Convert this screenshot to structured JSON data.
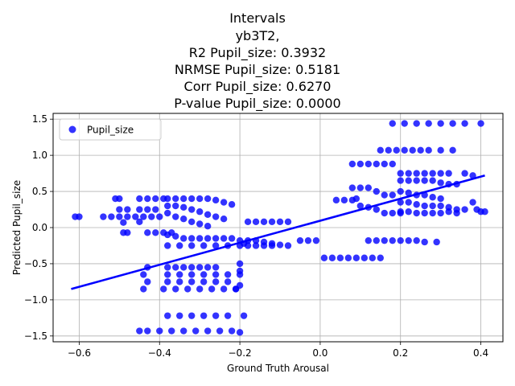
{
  "chart_data": {
    "type": "scatter",
    "title_lines": [
      "Intervals",
      "yb3T2,",
      "R2 Pupil_size: 0.3932",
      "NRMSE Pupil_size: 0.5181",
      "Corr Pupil_size: 0.6270",
      "P-value Pupil_size: 0.0000"
    ],
    "xlabel": "Ground Truth Arousal",
    "ylabel": "Predicted Pupil_size",
    "xlim": [
      -0.665,
      0.455
    ],
    "ylim": [
      -1.58,
      1.58
    ],
    "xticks": [
      -0.6,
      -0.4,
      -0.2,
      0.0,
      0.2,
      0.4
    ],
    "xtick_labels": [
      "−0.6",
      "−0.4",
      "−0.2",
      "0.0",
      "0.2",
      "0.4"
    ],
    "yticks": [
      -1.5,
      -1.0,
      -0.5,
      0.0,
      0.5,
      1.0,
      1.5
    ],
    "ytick_labels": [
      "−1.5",
      "−1.0",
      "−0.5",
      "0.0",
      "0.5",
      "1.0",
      "1.5"
    ],
    "grid": true,
    "legend": {
      "position": "upper-left",
      "entries": [
        "Pupil_size"
      ]
    },
    "series": [
      {
        "name": "Pupil_size",
        "type": "scatter",
        "color": "#0000ff",
        "points": [
          [
            -0.61,
            0.15
          ],
          [
            -0.6,
            0.15
          ],
          [
            -0.54,
            0.15
          ],
          [
            -0.52,
            0.15
          ],
          [
            -0.5,
            0.15
          ],
          [
            -0.48,
            0.15
          ],
          [
            -0.46,
            0.15
          ],
          [
            -0.5,
            0.25
          ],
          [
            -0.48,
            0.25
          ],
          [
            -0.51,
            0.4
          ],
          [
            -0.5,
            0.4
          ],
          [
            -0.49,
            0.07
          ],
          [
            -0.48,
            -0.07
          ],
          [
            -0.49,
            -0.07
          ],
          [
            -0.45,
            0.4
          ],
          [
            -0.43,
            0.4
          ],
          [
            -0.41,
            0.4
          ],
          [
            -0.39,
            0.4
          ],
          [
            -0.45,
            0.25
          ],
          [
            -0.43,
            0.25
          ],
          [
            -0.41,
            0.25
          ],
          [
            -0.44,
            0.15
          ],
          [
            -0.42,
            0.15
          ],
          [
            -0.4,
            0.15
          ],
          [
            -0.45,
            0.08
          ],
          [
            -0.43,
            -0.07
          ],
          [
            -0.41,
            -0.07
          ],
          [
            -0.39,
            -0.07
          ],
          [
            -0.37,
            -0.07
          ],
          [
            -0.44,
            -0.65
          ],
          [
            -0.43,
            -0.75
          ],
          [
            -0.44,
            -0.85
          ],
          [
            -0.43,
            -0.55
          ],
          [
            -0.45,
            -1.43
          ],
          [
            -0.43,
            -1.43
          ],
          [
            -0.4,
            -1.43
          ],
          [
            -0.37,
            -1.43
          ],
          [
            -0.34,
            -1.43
          ],
          [
            -0.31,
            -1.43
          ],
          [
            -0.28,
            -1.43
          ],
          [
            -0.25,
            -1.43
          ],
          [
            -0.22,
            -1.43
          ],
          [
            -0.2,
            -1.45
          ],
          [
            -0.38,
            0.4
          ],
          [
            -0.36,
            0.4
          ],
          [
            -0.34,
            0.4
          ],
          [
            -0.32,
            0.4
          ],
          [
            -0.3,
            0.4
          ],
          [
            -0.28,
            0.4
          ],
          [
            -0.26,
            0.38
          ],
          [
            -0.24,
            0.35
          ],
          [
            -0.22,
            0.32
          ],
          [
            -0.38,
            0.3
          ],
          [
            -0.36,
            0.3
          ],
          [
            -0.34,
            0.28
          ],
          [
            -0.32,
            0.25
          ],
          [
            -0.3,
            0.22
          ],
          [
            -0.28,
            0.18
          ],
          [
            -0.26,
            0.15
          ],
          [
            -0.24,
            0.12
          ],
          [
            -0.38,
            0.2
          ],
          [
            -0.36,
            0.15
          ],
          [
            -0.34,
            0.12
          ],
          [
            -0.32,
            0.08
          ],
          [
            -0.3,
            0.05
          ],
          [
            -0.28,
            0.02
          ],
          [
            -0.38,
            -0.1
          ],
          [
            -0.36,
            -0.12
          ],
          [
            -0.34,
            -0.15
          ],
          [
            -0.32,
            -0.15
          ],
          [
            -0.3,
            -0.15
          ],
          [
            -0.28,
            -0.15
          ],
          [
            -0.26,
            -0.15
          ],
          [
            -0.24,
            -0.15
          ],
          [
            -0.22,
            -0.15
          ],
          [
            -0.38,
            -0.25
          ],
          [
            -0.35,
            -0.25
          ],
          [
            -0.32,
            -0.25
          ],
          [
            -0.29,
            -0.25
          ],
          [
            -0.26,
            -0.25
          ],
          [
            -0.23,
            -0.25
          ],
          [
            -0.2,
            -0.25
          ],
          [
            -0.38,
            -0.55
          ],
          [
            -0.36,
            -0.55
          ],
          [
            -0.34,
            -0.55
          ],
          [
            -0.32,
            -0.55
          ],
          [
            -0.3,
            -0.55
          ],
          [
            -0.28,
            -0.55
          ],
          [
            -0.26,
            -0.55
          ],
          [
            -0.38,
            -0.65
          ],
          [
            -0.35,
            -0.65
          ],
          [
            -0.32,
            -0.65
          ],
          [
            -0.29,
            -0.65
          ],
          [
            -0.26,
            -0.65
          ],
          [
            -0.23,
            -0.65
          ],
          [
            -0.2,
            -0.65
          ],
          [
            -0.38,
            -0.75
          ],
          [
            -0.35,
            -0.75
          ],
          [
            -0.32,
            -0.75
          ],
          [
            -0.29,
            -0.75
          ],
          [
            -0.26,
            -0.75
          ],
          [
            -0.23,
            -0.75
          ],
          [
            -0.39,
            -0.85
          ],
          [
            -0.36,
            -0.85
          ],
          [
            -0.33,
            -0.85
          ],
          [
            -0.3,
            -0.85
          ],
          [
            -0.27,
            -0.85
          ],
          [
            -0.24,
            -0.85
          ],
          [
            -0.21,
            -0.85
          ],
          [
            -0.38,
            -1.22
          ],
          [
            -0.35,
            -1.22
          ],
          [
            -0.32,
            -1.22
          ],
          [
            -0.29,
            -1.22
          ],
          [
            -0.26,
            -1.22
          ],
          [
            -0.23,
            -1.22
          ],
          [
            -0.19,
            -1.22
          ],
          [
            -0.2,
            -0.5
          ],
          [
            -0.2,
            -0.6
          ],
          [
            -0.2,
            -0.8
          ],
          [
            -0.21,
            -0.85
          ],
          [
            -0.2,
            -0.18
          ],
          [
            -0.19,
            -0.22
          ],
          [
            -0.18,
            0.08
          ],
          [
            -0.16,
            0.08
          ],
          [
            -0.14,
            0.08
          ],
          [
            -0.12,
            0.08
          ],
          [
            -0.1,
            0.08
          ],
          [
            -0.08,
            0.08
          ],
          [
            -0.18,
            -0.18
          ],
          [
            -0.16,
            -0.18
          ],
          [
            -0.14,
            -0.2
          ],
          [
            -0.12,
            -0.22
          ],
          [
            -0.1,
            -0.24
          ],
          [
            -0.08,
            -0.25
          ],
          [
            -0.18,
            -0.25
          ],
          [
            -0.16,
            -0.25
          ],
          [
            -0.14,
            -0.25
          ],
          [
            -0.12,
            -0.25
          ],
          [
            -0.05,
            -0.18
          ],
          [
            -0.03,
            -0.18
          ],
          [
            -0.01,
            -0.18
          ],
          [
            0.04,
            0.38
          ],
          [
            0.06,
            0.38
          ],
          [
            0.08,
            0.38
          ],
          [
            0.09,
            0.4
          ],
          [
            0.01,
            -0.42
          ],
          [
            0.03,
            -0.42
          ],
          [
            0.05,
            -0.42
          ],
          [
            0.07,
            -0.42
          ],
          [
            0.09,
            -0.42
          ],
          [
            0.11,
            -0.42
          ],
          [
            0.13,
            -0.42
          ],
          [
            0.15,
            -0.42
          ],
          [
            0.08,
            0.88
          ],
          [
            0.1,
            0.88
          ],
          [
            0.12,
            0.88
          ],
          [
            0.14,
            0.88
          ],
          [
            0.16,
            0.88
          ],
          [
            0.18,
            0.88
          ],
          [
            0.08,
            0.55
          ],
          [
            0.1,
            0.55
          ],
          [
            0.12,
            0.55
          ],
          [
            0.14,
            0.5
          ],
          [
            0.16,
            0.45
          ],
          [
            0.18,
            0.45
          ],
          [
            0.1,
            0.3
          ],
          [
            0.12,
            0.28
          ],
          [
            0.14,
            0.25
          ],
          [
            0.16,
            0.2
          ],
          [
            0.18,
            0.2
          ],
          [
            0.2,
            0.2
          ],
          [
            0.12,
            -0.18
          ],
          [
            0.14,
            -0.18
          ],
          [
            0.16,
            -0.18
          ],
          [
            0.18,
            -0.18
          ],
          [
            0.2,
            -0.18
          ],
          [
            0.22,
            -0.18
          ],
          [
            0.24,
            -0.18
          ],
          [
            0.26,
            -0.2
          ],
          [
            0.29,
            -0.2
          ],
          [
            0.15,
            1.07
          ],
          [
            0.17,
            1.07
          ],
          [
            0.19,
            1.07
          ],
          [
            0.21,
            1.07
          ],
          [
            0.23,
            1.07
          ],
          [
            0.25,
            1.07
          ],
          [
            0.27,
            1.07
          ],
          [
            0.3,
            1.07
          ],
          [
            0.33,
            1.07
          ],
          [
            0.18,
            1.44
          ],
          [
            0.21,
            1.44
          ],
          [
            0.24,
            1.44
          ],
          [
            0.27,
            1.44
          ],
          [
            0.3,
            1.44
          ],
          [
            0.33,
            1.44
          ],
          [
            0.36,
            1.44
          ],
          [
            0.4,
            1.44
          ],
          [
            0.2,
            0.75
          ],
          [
            0.22,
            0.75
          ],
          [
            0.24,
            0.75
          ],
          [
            0.26,
            0.75
          ],
          [
            0.28,
            0.75
          ],
          [
            0.3,
            0.75
          ],
          [
            0.32,
            0.75
          ],
          [
            0.36,
            0.75
          ],
          [
            0.38,
            0.72
          ],
          [
            0.2,
            0.65
          ],
          [
            0.22,
            0.65
          ],
          [
            0.24,
            0.65
          ],
          [
            0.26,
            0.65
          ],
          [
            0.28,
            0.65
          ],
          [
            0.3,
            0.62
          ],
          [
            0.32,
            0.6
          ],
          [
            0.34,
            0.6
          ],
          [
            0.2,
            0.5
          ],
          [
            0.22,
            0.48
          ],
          [
            0.24,
            0.45
          ],
          [
            0.26,
            0.45
          ],
          [
            0.28,
            0.42
          ],
          [
            0.3,
            0.4
          ],
          [
            0.2,
            0.35
          ],
          [
            0.22,
            0.35
          ],
          [
            0.24,
            0.32
          ],
          [
            0.26,
            0.3
          ],
          [
            0.28,
            0.3
          ],
          [
            0.3,
            0.3
          ],
          [
            0.32,
            0.28
          ],
          [
            0.34,
            0.25
          ],
          [
            0.36,
            0.25
          ],
          [
            0.2,
            0.22
          ],
          [
            0.22,
            0.22
          ],
          [
            0.24,
            0.2
          ],
          [
            0.26,
            0.2
          ],
          [
            0.28,
            0.2
          ],
          [
            0.3,
            0.2
          ],
          [
            0.32,
            0.22
          ],
          [
            0.34,
            0.2
          ],
          [
            0.38,
            0.35
          ],
          [
            0.39,
            0.25
          ],
          [
            0.4,
            0.22
          ],
          [
            0.41,
            0.22
          ]
        ]
      },
      {
        "name": "",
        "type": "line",
        "color": "#0000ff",
        "points": [
          [
            -0.62,
            -0.85
          ],
          [
            0.41,
            0.72
          ]
        ]
      }
    ]
  }
}
